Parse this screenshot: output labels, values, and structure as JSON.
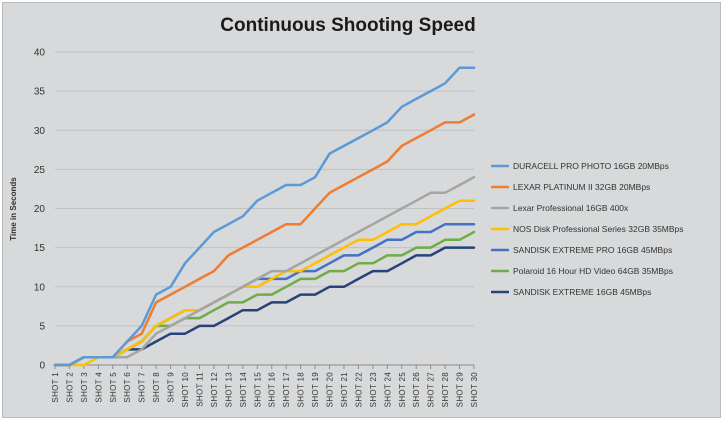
{
  "chart_data": {
    "type": "line",
    "title": "Continuous Shooting Speed",
    "xlabel": "",
    "ylabel": "Time in Seconds",
    "ylim": [
      0,
      40
    ],
    "yticks": [
      0,
      5,
      10,
      15,
      20,
      25,
      30,
      35,
      40
    ],
    "grid": true,
    "legend_position": "right",
    "categories": [
      "SHOT 1",
      "SHOT 2",
      "SHOT 3",
      "SHOT 4",
      "SHOT 5",
      "SHOT 6",
      "SHOT 7",
      "SHOT 8",
      "SHOT 9",
      "SHOT 10",
      "SHOT 11",
      "SHOT 12",
      "SHOT 13",
      "SHOT 14",
      "SHOT 15",
      "SHOT 16",
      "SHOT 17",
      "SHOT 18",
      "SHOT 19",
      "SHOT 20",
      "SHOT 21",
      "SHOT 22",
      "SHOT 23",
      "SHOT 24",
      "SHOT 25",
      "SHOT 26",
      "SHOT 27",
      "SHOT 28",
      "SHOT 29",
      "SHOT 30"
    ],
    "series": [
      {
        "name": "DURACELL PRO PHOTO 16GB 20MBps",
        "color": "#5b9bd5",
        "values": [
          0,
          0,
          1,
          1,
          1,
          3,
          5,
          9,
          10,
          13,
          15,
          17,
          18,
          19,
          21,
          22,
          23,
          23,
          24,
          27,
          28,
          29,
          30,
          31,
          33,
          34,
          35,
          36,
          38,
          38
        ]
      },
      {
        "name": "LEXAR PLATINUM II 32GB 20MBps",
        "color": "#ed7d31",
        "values": [
          0,
          0,
          1,
          1,
          1,
          3,
          4,
          8,
          9,
          10,
          11,
          12,
          14,
          15,
          16,
          17,
          18,
          18,
          20,
          22,
          23,
          24,
          25,
          26,
          28,
          29,
          30,
          31,
          31,
          32
        ]
      },
      {
        "name": "Lexar Professional 16GB 400x",
        "color": "#a5a5a5",
        "values": [
          0,
          0,
          1,
          1,
          1,
          1,
          2,
          4,
          5,
          6,
          7,
          8,
          9,
          10,
          11,
          12,
          12,
          13,
          14,
          15,
          16,
          17,
          18,
          19,
          20,
          21,
          22,
          22,
          23,
          24
        ]
      },
      {
        "name": "NOS Disk Professional Series 32GB 35MBps",
        "color": "#ffc000",
        "values": [
          0,
          0,
          0,
          1,
          1,
          2,
          3,
          5,
          6,
          7,
          7,
          8,
          9,
          10,
          10,
          11,
          12,
          12,
          13,
          14,
          15,
          16,
          16,
          17,
          18,
          18,
          19,
          20,
          21,
          21
        ]
      },
      {
        "name": "SANDISK EXTREME PRO 16GB 45MBps",
        "color": "#4472c4",
        "values": [
          0,
          0,
          1,
          1,
          1,
          2,
          3,
          5,
          6,
          7,
          7,
          8,
          9,
          10,
          11,
          11,
          11,
          12,
          12,
          13,
          14,
          14,
          15,
          16,
          16,
          17,
          17,
          18,
          18,
          18
        ]
      },
      {
        "name": "Polaroid 16 Hour HD Video 64GB 35MBps",
        "color": "#70ad47",
        "values": [
          0,
          0,
          1,
          1,
          1,
          2,
          3,
          5,
          5,
          6,
          6,
          7,
          8,
          8,
          9,
          9,
          10,
          11,
          11,
          12,
          12,
          13,
          13,
          14,
          14,
          15,
          15,
          16,
          16,
          17
        ]
      },
      {
        "name": "SANDISK EXTREME 16GB 45MBps",
        "color": "#264478",
        "values": [
          0,
          0,
          1,
          1,
          1,
          2,
          2,
          3,
          4,
          4,
          5,
          5,
          6,
          7,
          7,
          8,
          8,
          9,
          9,
          10,
          10,
          11,
          12,
          12,
          13,
          14,
          14,
          15,
          15,
          15
        ]
      }
    ]
  }
}
